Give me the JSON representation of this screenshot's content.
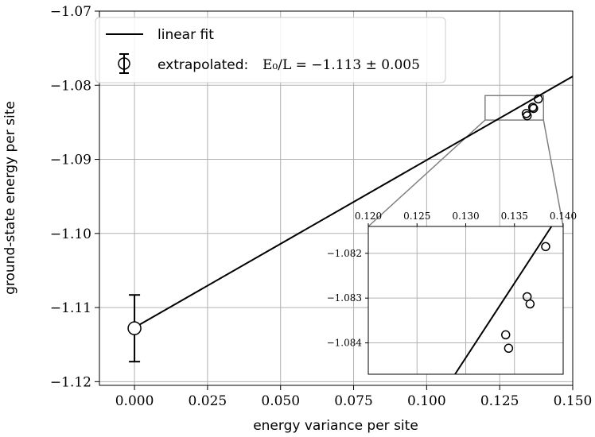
{
  "chart_data": [
    {
      "type": "line",
      "xlabel": "energy variance per site",
      "ylabel": "ground-state energy per site",
      "xlim": [
        -0.012,
        0.15
      ],
      "ylim": [
        -1.1205,
        -1.07
      ],
      "x_ticks": [
        "0.000",
        "0.025",
        "0.050",
        "0.075",
        "0.100",
        "0.125",
        "0.150"
      ],
      "y_ticks": [
        "−1.07",
        "−1.08",
        "−1.09",
        "−1.10",
        "−1.11",
        "−1.12"
      ],
      "grid": true,
      "legend_position": "top-left",
      "series": [
        {
          "name": "linear fit",
          "kind": "line",
          "x": [
            0.0,
            0.15
          ],
          "y": [
            -1.1127,
            -1.0788
          ]
        },
        {
          "name": "extrapolated",
          "kind": "errorbar",
          "x": [
            0.0
          ],
          "y": [
            -1.1128
          ],
          "yerr": [
            0.0045
          ]
        },
        {
          "name": "",
          "kind": "scatter",
          "x": [
            0.1341,
            0.1344,
            0.1363,
            0.1366,
            0.1382
          ],
          "y": [
            -1.08382,
            -1.08412,
            -1.08297,
            -1.08313,
            -1.08185
          ]
        }
      ],
      "legend": {
        "line_label": "linear fit",
        "errorbar_prefix": "extrapolated:",
        "errorbar_math": "E₀/L = −1.113 ± 0.005"
      }
    },
    {
      "type": "scatter",
      "role": "inset zoom",
      "xlim": [
        0.12,
        0.14
      ],
      "ylim": [
        -1.0847,
        -1.0814
      ],
      "x_ticks": [
        "0.120",
        "0.125",
        "0.130",
        "0.135",
        "0.140"
      ],
      "y_ticks": [
        "−1.082",
        "−1.083",
        "−1.084"
      ],
      "grid": true,
      "points": {
        "x": [
          0.1341,
          0.1344,
          0.1363,
          0.1366,
          0.1382
        ],
        "y": [
          -1.08382,
          -1.08412,
          -1.08297,
          -1.08313,
          -1.08185
        ]
      },
      "fit": {
        "x": [
          0.1289,
          0.1388
        ],
        "y": [
          -1.0847,
          -1.0814
        ]
      }
    }
  ]
}
